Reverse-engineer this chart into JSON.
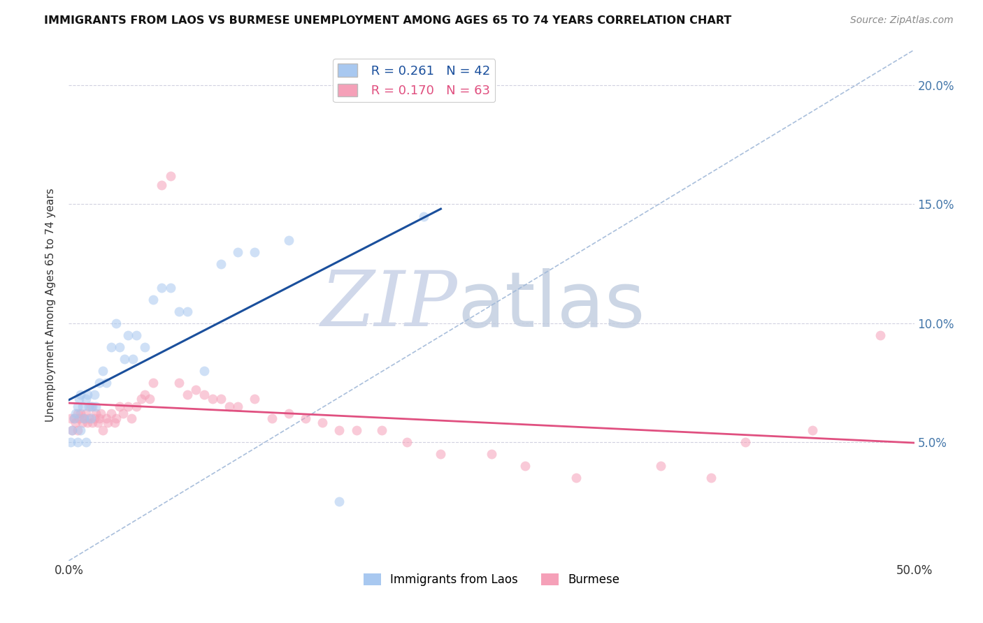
{
  "title": "IMMIGRANTS FROM LAOS VS BURMESE UNEMPLOYMENT AMONG AGES 65 TO 74 YEARS CORRELATION CHART",
  "source": "Source: ZipAtlas.com",
  "ylabel": "Unemployment Among Ages 65 to 74 years",
  "xlim": [
    0,
    0.5
  ],
  "ylim": [
    0.0,
    0.215
  ],
  "xticks": [
    0.0,
    0.5
  ],
  "yticks": [
    0.05,
    0.1,
    0.15,
    0.2
  ],
  "legend_r": [
    0.261,
    0.17
  ],
  "legend_n": [
    42,
    63
  ],
  "blue_color": "#A8C8F0",
  "pink_color": "#F5A0B8",
  "blue_line_color": "#1A4F9C",
  "pink_line_color": "#E05080",
  "ref_line_color": "#A0B8D8",
  "grid_color": "#CCCCDD",
  "scatter_alpha": 0.55,
  "scatter_size": 100,
  "background_color": "#FFFFFF",
  "blue_tick_color": "#4477AA",
  "blue_dots_x": [
    0.001,
    0.002,
    0.003,
    0.004,
    0.005,
    0.005,
    0.006,
    0.007,
    0.007,
    0.008,
    0.009,
    0.01,
    0.01,
    0.011,
    0.012,
    0.013,
    0.014,
    0.015,
    0.016,
    0.018,
    0.02,
    0.022,
    0.025,
    0.028,
    0.03,
    0.033,
    0.035,
    0.038,
    0.04,
    0.045,
    0.05,
    0.055,
    0.06,
    0.065,
    0.07,
    0.08,
    0.09,
    0.1,
    0.11,
    0.13,
    0.16,
    0.21
  ],
  "blue_dots_y": [
    0.05,
    0.055,
    0.06,
    0.062,
    0.065,
    0.05,
    0.068,
    0.07,
    0.055,
    0.065,
    0.06,
    0.068,
    0.05,
    0.07,
    0.065,
    0.06,
    0.065,
    0.07,
    0.065,
    0.075,
    0.08,
    0.075,
    0.09,
    0.1,
    0.09,
    0.085,
    0.095,
    0.085,
    0.095,
    0.09,
    0.11,
    0.115,
    0.115,
    0.105,
    0.105,
    0.08,
    0.125,
    0.13,
    0.13,
    0.135,
    0.025,
    0.145
  ],
  "pink_dots_x": [
    0.001,
    0.002,
    0.003,
    0.004,
    0.005,
    0.005,
    0.006,
    0.007,
    0.008,
    0.009,
    0.01,
    0.011,
    0.012,
    0.013,
    0.014,
    0.015,
    0.016,
    0.017,
    0.018,
    0.019,
    0.02,
    0.022,
    0.023,
    0.025,
    0.027,
    0.028,
    0.03,
    0.032,
    0.035,
    0.037,
    0.04,
    0.043,
    0.045,
    0.048,
    0.05,
    0.055,
    0.06,
    0.065,
    0.07,
    0.075,
    0.08,
    0.085,
    0.09,
    0.095,
    0.1,
    0.11,
    0.12,
    0.13,
    0.14,
    0.15,
    0.16,
    0.17,
    0.185,
    0.2,
    0.22,
    0.25,
    0.27,
    0.3,
    0.35,
    0.38,
    0.4,
    0.44,
    0.48
  ],
  "pink_dots_y": [
    0.06,
    0.055,
    0.06,
    0.058,
    0.062,
    0.055,
    0.06,
    0.062,
    0.058,
    0.06,
    0.062,
    0.058,
    0.06,
    0.065,
    0.058,
    0.06,
    0.062,
    0.058,
    0.06,
    0.062,
    0.055,
    0.06,
    0.058,
    0.062,
    0.058,
    0.06,
    0.065,
    0.062,
    0.065,
    0.06,
    0.065,
    0.068,
    0.07,
    0.068,
    0.075,
    0.158,
    0.162,
    0.075,
    0.07,
    0.072,
    0.07,
    0.068,
    0.068,
    0.065,
    0.065,
    0.068,
    0.06,
    0.062,
    0.06,
    0.058,
    0.055,
    0.055,
    0.055,
    0.05,
    0.045,
    0.045,
    0.04,
    0.035,
    0.04,
    0.035,
    0.05,
    0.055,
    0.095
  ]
}
